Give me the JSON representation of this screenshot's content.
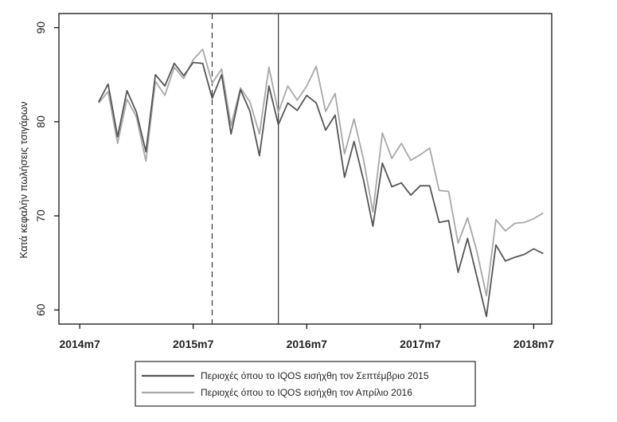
{
  "chart_data": {
    "type": "line",
    "ylabel": "Κατά κεφαλήν πωλήσεις τσιγάρων",
    "xlabel": "",
    "ylim": [
      58.5,
      91.5
    ],
    "yticks": [
      60,
      70,
      80,
      90
    ],
    "xlim": [
      0,
      49
    ],
    "xticks": [
      {
        "pos": 0,
        "label": "2014m7"
      },
      {
        "pos": 12,
        "label": "2015m7"
      },
      {
        "pos": 24,
        "label": "2016m7"
      },
      {
        "pos": 36,
        "label": "2017m7"
      },
      {
        "pos": 48,
        "label": "2018m7"
      }
    ],
    "vlines": [
      {
        "pos": 14,
        "style": "dashed"
      },
      {
        "pos": 21,
        "style": "solid"
      }
    ],
    "x": [
      2,
      3,
      4,
      5,
      6,
      7,
      8,
      9,
      10,
      11,
      12,
      13,
      14,
      15,
      16,
      17,
      18,
      19,
      20,
      21,
      22,
      23,
      24,
      25,
      26,
      27,
      28,
      29,
      30,
      31,
      32,
      33,
      34,
      35,
      36,
      37,
      38,
      39,
      40,
      41,
      42,
      43,
      44,
      45,
      46,
      47,
      48,
      49
    ],
    "series": [
      {
        "name": "Περιοχές όπου το IQOS εισήχθη τον Σεπτέμβριο 2015",
        "color": "#555555",
        "values": [
          82.1,
          84.0,
          78.4,
          83.3,
          81.0,
          76.8,
          85.0,
          83.8,
          86.2,
          84.9,
          86.3,
          86.2,
          82.5,
          85.0,
          78.7,
          83.4,
          81.1,
          76.4,
          83.8,
          79.7,
          82.0,
          81.2,
          82.8,
          82.0,
          79.1,
          80.7,
          74.1,
          77.9,
          73.8,
          68.9,
          75.6,
          73.1,
          73.5,
          72.2,
          73.2,
          73.2,
          69.3,
          69.5,
          64.0,
          67.6,
          63.5,
          59.3,
          66.9,
          65.2,
          65.6,
          65.9,
          66.5,
          66.0
        ]
      },
      {
        "name": "Περιοχές όπου το IQOS εισήχθη τον Απρίλιο 2016",
        "color": "#a8a8a8",
        "values": [
          82.0,
          83.2,
          77.7,
          82.4,
          80.5,
          75.8,
          84.3,
          82.8,
          85.8,
          84.6,
          86.6,
          87.7,
          84.1,
          85.6,
          79.6,
          83.6,
          82.1,
          78.7,
          85.8,
          81.0,
          83.8,
          82.3,
          83.8,
          85.9,
          81.1,
          83.0,
          76.6,
          80.3,
          76.0,
          70.4,
          78.8,
          76.1,
          77.7,
          75.9,
          76.5,
          77.2,
          72.7,
          72.6,
          67.1,
          69.8,
          66.2,
          61.5,
          69.6,
          68.4,
          69.2,
          69.3,
          69.7,
          70.3
        ]
      }
    ],
    "legend": {
      "position": "bottom-center",
      "entries": [
        {
          "label": "Περιοχές όπου το IQOS εισήχθη τον Σεπτέμβριο 2015",
          "color": "#555555"
        },
        {
          "label": "Περιοχές όπου το IQOS εισήχθη τον Απρίλιο 2016",
          "color": "#a8a8a8"
        }
      ]
    },
    "grid": false
  }
}
